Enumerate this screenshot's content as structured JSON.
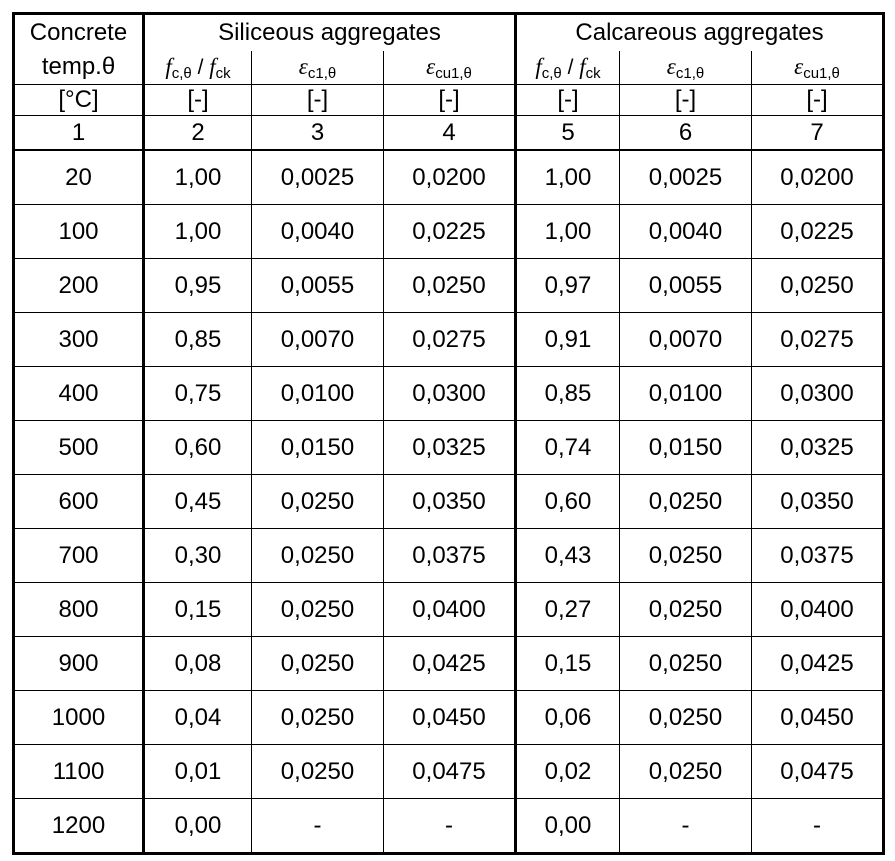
{
  "header": {
    "col1": [
      "Concrete",
      "temp.θ"
    ],
    "groups": [
      "Siliceous aggregates",
      "Calcareous aggregates"
    ],
    "symbols": [
      [
        "f",
        "c,θ",
        " / ",
        "f",
        "ck"
      ],
      [
        "ε",
        "c1,θ"
      ],
      [
        "ε",
        "cu1,θ"
      ],
      [
        "f",
        "c,θ",
        " / ",
        "f",
        "ck"
      ],
      [
        "ε",
        "c1,θ"
      ],
      [
        "ε",
        "cu1,θ"
      ]
    ],
    "units": [
      "[°C]",
      "[-]",
      "[-]",
      "[-]",
      "[-]",
      "[-]",
      "[-]"
    ],
    "numbers": [
      1,
      2,
      3,
      4,
      5,
      6,
      7
    ]
  },
  "rows": [
    [
      "20",
      "1,00",
      "0,0025",
      "0,0200",
      "1,00",
      "0,0025",
      "0,0200"
    ],
    [
      "100",
      "1,00",
      "0,0040",
      "0,0225",
      "1,00",
      "0,0040",
      "0,0225"
    ],
    [
      "200",
      "0,95",
      "0,0055",
      "0,0250",
      "0,97",
      "0,0055",
      "0,0250"
    ],
    [
      "300",
      "0,85",
      "0,0070",
      "0,0275",
      "0,91",
      "0,0070",
      "0,0275"
    ],
    [
      "400",
      "0,75",
      "0,0100",
      "0,0300",
      "0,85",
      "0,0100",
      "0,0300"
    ],
    [
      "500",
      "0,60",
      "0,0150",
      "0,0325",
      "0,74",
      "0,0150",
      "0,0325"
    ],
    [
      "600",
      "0,45",
      "0,0250",
      "0,0350",
      "0,60",
      "0,0250",
      "0,0350"
    ],
    [
      "700",
      "0,30",
      "0,0250",
      "0,0375",
      "0,43",
      "0,0250",
      "0,0375"
    ],
    [
      "800",
      "0,15",
      "0,0250",
      "0,0400",
      "0,27",
      "0,0250",
      "0,0400"
    ],
    [
      "900",
      "0,08",
      "0,0250",
      "0,0425",
      "0,15",
      "0,0250",
      "0,0425"
    ],
    [
      "1000",
      "0,04",
      "0,0250",
      "0,0450",
      "0,06",
      "0,0250",
      "0,0450"
    ],
    [
      "1100",
      "0,01",
      "0,0250",
      "0,0475",
      "0,02",
      "0,0250",
      "0,0475"
    ],
    [
      "1200",
      "0,00",
      "-",
      "-",
      "0,00",
      "-",
      "-"
    ]
  ]
}
